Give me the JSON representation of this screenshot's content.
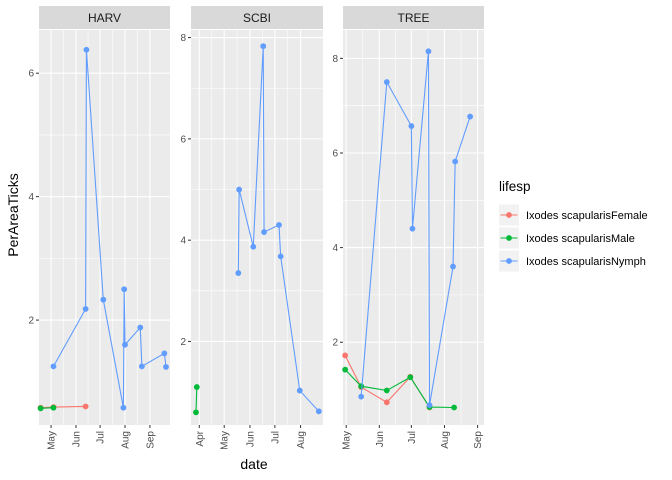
{
  "chart_data": {
    "type": "line",
    "xlabel": "date",
    "ylabel": "PerAreaTicks",
    "legend": {
      "title": "lifesp",
      "position": "right",
      "entries": [
        {
          "name": "Ixodes scapularisFemale",
          "color": "#F8766D"
        },
        {
          "name": "Ixodes scapularisMale",
          "color": "#00BA38"
        },
        {
          "name": "Ixodes scapularisNymph",
          "color": "#619CFF"
        }
      ]
    },
    "panels": [
      {
        "name": "HARV",
        "xlim": [
          "2019-04-16",
          "2019-09-26"
        ],
        "ylim": [
          0.3,
          6.7
        ],
        "xticks": [
          [
            "2019-05-01",
            "May"
          ],
          [
            "2019-06-01",
            "Jun"
          ],
          [
            "2019-07-01",
            "Jul"
          ],
          [
            "2019-08-01",
            "Aug"
          ],
          [
            "2019-09-01",
            "Sep"
          ]
        ],
        "yticks": [
          2,
          4,
          6
        ],
        "series": [
          {
            "name": "Ixodes scapularisFemale",
            "points": [
              [
                "2019-04-18",
                0.58
              ],
              [
                "2019-05-04",
                0.59
              ],
              [
                "2019-06-13",
                0.6
              ]
            ]
          },
          {
            "name": "Ixodes scapularisMale",
            "points": [
              [
                "2019-04-18",
                0.57
              ],
              [
                "2019-05-04",
                0.58
              ]
            ]
          },
          {
            "name": "Ixodes scapularisNymph",
            "points": [
              [
                "2019-05-04",
                1.25
              ],
              [
                "2019-06-13",
                2.18
              ],
              [
                "2019-06-14",
                6.38
              ],
              [
                "2019-07-05",
                2.33
              ],
              [
                "2019-07-30",
                0.58
              ],
              [
                "2019-07-31",
                2.5
              ],
              [
                "2019-08-01",
                1.6
              ],
              [
                "2019-08-20",
                1.88
              ],
              [
                "2019-08-22",
                1.25
              ],
              [
                "2019-09-19",
                1.46
              ],
              [
                "2019-09-21",
                1.24
              ]
            ]
          }
        ]
      },
      {
        "name": "SCBI",
        "xlim": [
          "2019-03-22",
          "2019-08-28"
        ],
        "ylim": [
          0.35,
          8.15
        ],
        "xticks": [
          [
            "2019-04-01",
            "Apr"
          ],
          [
            "2019-05-01",
            "May"
          ],
          [
            "2019-06-01",
            "Jun"
          ],
          [
            "2019-07-01",
            "Jul"
          ],
          [
            "2019-08-01",
            "Aug"
          ]
        ],
        "yticks": [
          2,
          4,
          6,
          8
        ],
        "series": [
          {
            "name": "Ixodes scapularisFemale",
            "points": []
          },
          {
            "name": "Ixodes scapularisMale",
            "points": [
              [
                "2019-03-28",
                0.6
              ],
              [
                "2019-03-29",
                1.1
              ]
            ]
          },
          {
            "name": "Ixodes scapularisNymph",
            "points": [
              [
                "2019-05-18",
                3.35
              ],
              [
                "2019-05-19",
                5.0
              ],
              [
                "2019-06-05",
                3.87
              ],
              [
                "2019-06-17",
                7.83
              ],
              [
                "2019-06-18",
                4.16
              ],
              [
                "2019-07-06",
                4.3
              ],
              [
                "2019-07-08",
                3.68
              ],
              [
                "2019-07-31",
                1.03
              ],
              [
                "2019-08-23",
                0.62
              ]
            ]
          }
        ]
      },
      {
        "name": "TREE",
        "xlim": [
          "2019-04-28",
          "2019-09-07"
        ],
        "ylim": [
          0.25,
          8.6
        ],
        "xticks": [
          [
            "2019-05-01",
            "May"
          ],
          [
            "2019-06-01",
            "Jun"
          ],
          [
            "2019-07-01",
            "Jul"
          ],
          [
            "2019-08-01",
            "Aug"
          ],
          [
            "2019-09-01",
            "Sep"
          ]
        ],
        "yticks": [
          2,
          4,
          6,
          8
        ],
        "series": [
          {
            "name": "Ixodes scapularisFemale",
            "points": [
              [
                "2019-04-30",
                1.72
              ],
              [
                "2019-05-15",
                1.05
              ],
              [
                "2019-06-08",
                0.73
              ],
              [
                "2019-06-30",
                1.27
              ],
              [
                "2019-07-18",
                0.62
              ]
            ]
          },
          {
            "name": "Ixodes scapularisMale",
            "points": [
              [
                "2019-04-30",
                1.42
              ],
              [
                "2019-05-15",
                1.07
              ],
              [
                "2019-06-08",
                0.98
              ],
              [
                "2019-06-30",
                1.26
              ],
              [
                "2019-07-18",
                0.63
              ],
              [
                "2019-08-10",
                0.62
              ]
            ]
          },
          {
            "name": "Ixodes scapularisNymph",
            "points": [
              [
                "2019-05-15",
                0.85
              ],
              [
                "2019-06-08",
                7.5
              ],
              [
                "2019-07-01",
                6.57
              ],
              [
                "2019-07-02",
                4.4
              ],
              [
                "2019-07-17",
                8.15
              ],
              [
                "2019-07-18",
                0.67
              ],
              [
                "2019-08-09",
                3.6
              ],
              [
                "2019-08-11",
                5.82
              ],
              [
                "2019-08-25",
                6.77
              ]
            ]
          }
        ]
      }
    ]
  }
}
